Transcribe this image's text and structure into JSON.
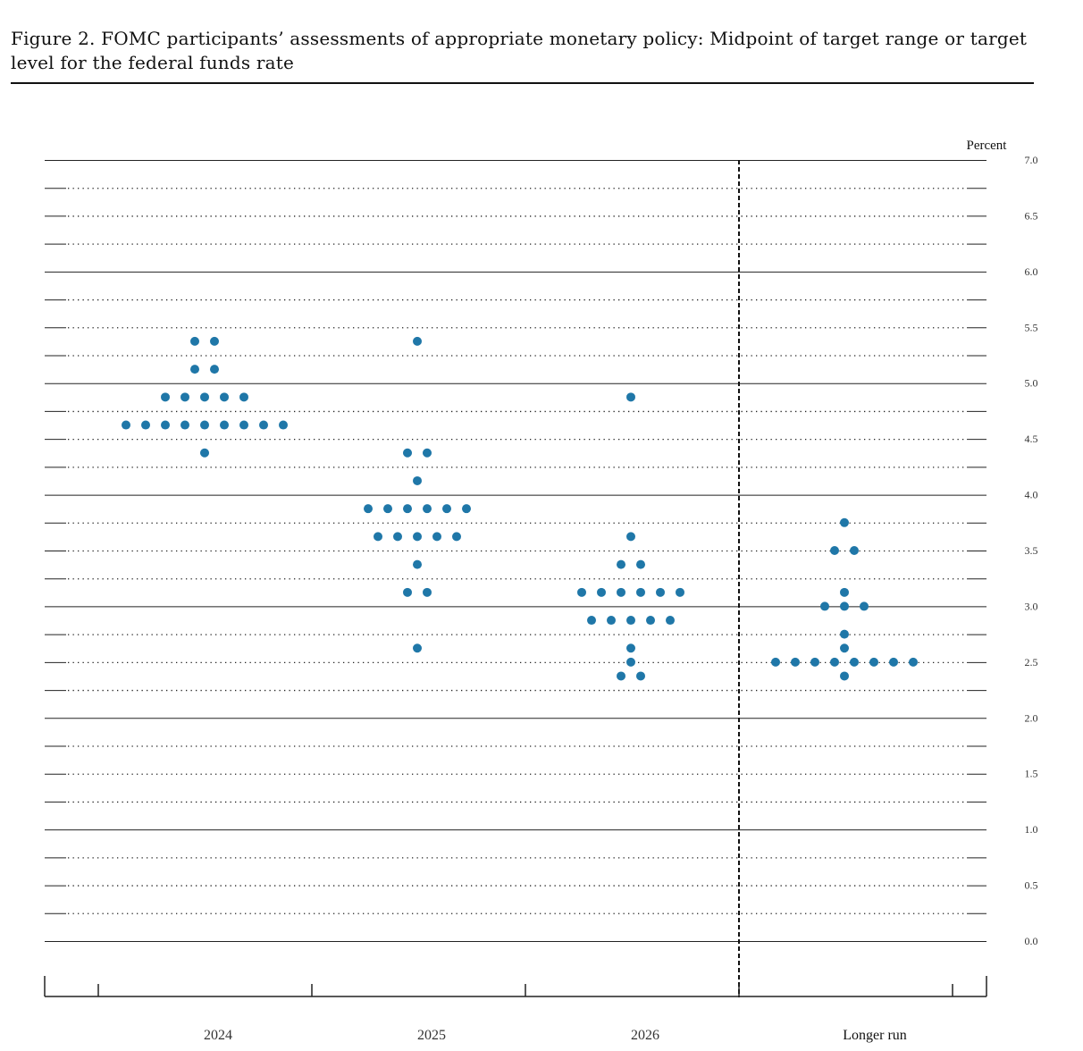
{
  "figure_title": "Figure 2.  FOMC participants’ assessments of appropriate monetary policy:  Midpoint of target range or target level for the federal funds rate",
  "chart_data": {
    "type": "scatter",
    "subtype": "dot-plot",
    "ylabel": "Percent",
    "ylim": [
      0,
      7
    ],
    "y_ticks": [
      "0.0",
      "0.5",
      "1.0",
      "1.5",
      "2.0",
      "2.5",
      "3.0",
      "3.5",
      "4.0",
      "4.5",
      "5.0",
      "5.5",
      "6.0",
      "6.5",
      "7.0"
    ],
    "grid_step": 0.25,
    "dot_color": "#1f77a8",
    "columns": [
      {
        "label": "2024",
        "dots": [
          {
            "value": 5.375,
            "count": 2
          },
          {
            "value": 5.125,
            "count": 2
          },
          {
            "value": 4.875,
            "count": 5
          },
          {
            "value": 4.625,
            "count": 9
          },
          {
            "value": 4.375,
            "count": 1
          }
        ]
      },
      {
        "label": "2025",
        "dots": [
          {
            "value": 5.375,
            "count": 1
          },
          {
            "value": 4.375,
            "count": 2
          },
          {
            "value": 4.125,
            "count": 1
          },
          {
            "value": 3.875,
            "count": 6
          },
          {
            "value": 3.625,
            "count": 5
          },
          {
            "value": 3.375,
            "count": 1
          },
          {
            "value": 3.125,
            "count": 2
          },
          {
            "value": 2.625,
            "count": 1
          }
        ]
      },
      {
        "label": "2026",
        "dots": [
          {
            "value": 4.875,
            "count": 1
          },
          {
            "value": 3.625,
            "count": 1
          },
          {
            "value": 3.375,
            "count": 2
          },
          {
            "value": 3.125,
            "count": 6
          },
          {
            "value": 2.875,
            "count": 5
          },
          {
            "value": 2.625,
            "count": 1
          },
          {
            "value": 2.5,
            "count": 1
          },
          {
            "value": 2.375,
            "count": 2
          }
        ]
      },
      {
        "label": "Longer run",
        "dots": [
          {
            "value": 3.75,
            "count": 1
          },
          {
            "value": 3.5,
            "count": 2
          },
          {
            "value": 3.125,
            "count": 1
          },
          {
            "value": 3.0,
            "count": 3
          },
          {
            "value": 2.75,
            "count": 1
          },
          {
            "value": 2.625,
            "count": 1
          },
          {
            "value": 2.5,
            "count": 8
          },
          {
            "value": 2.375,
            "count": 1
          }
        ]
      }
    ]
  }
}
